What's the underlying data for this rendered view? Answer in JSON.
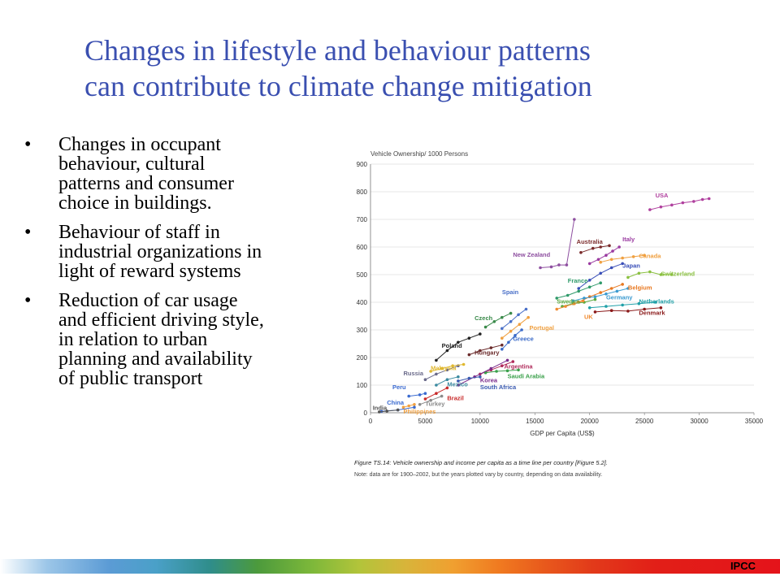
{
  "slide": {
    "title_lines": [
      "Changes in lifestyle and behaviour patterns",
      "can contribute to climate change mitigation"
    ],
    "bullets": [
      {
        "lines": [
          "Changes in occupant",
          "behaviour, cultural",
          "patterns and consumer",
          "choice in buildings."
        ]
      },
      {
        "lines": [
          "Behaviour of staff in",
          "industrial organizations in",
          "light of reward systems"
        ]
      },
      {
        "lines": [
          "Reduction of car usage",
          "and efficient driving style,",
          "in relation to urban",
          "planning and availability",
          "of public transport"
        ]
      }
    ],
    "bullet_char": "•",
    "footer_label": "IPCC"
  },
  "chart_data": {
    "type": "scatter",
    "title": "Vehicle Ownership/ 1000 Persons",
    "xlabel": "GDP per Capita (US$)",
    "ylabel": "",
    "xlim": [
      0,
      35000
    ],
    "ylim": [
      0,
      900
    ],
    "xticks": [
      "0",
      "5000",
      "10000",
      "15000",
      "20000",
      "25000",
      "30000",
      "35000"
    ],
    "yticks": [
      "0",
      "100",
      "200",
      "300",
      "400",
      "500",
      "600",
      "700",
      "800",
      "900"
    ],
    "grid": "horizontal",
    "caption_title": "Figure TS.14: Vehicle ownership and income per capita as a time line per country [Figure 5.2].",
    "caption_note": "Note: data are for 1900–2002, but the years plotted vary by country, depending on data availability.",
    "series": [
      {
        "name": "USA",
        "color": "#b0409e",
        "x": [
          25500,
          26500,
          27500,
          28500,
          29500,
          30300,
          30900
        ],
        "y": [
          735,
          745,
          752,
          760,
          765,
          772,
          775
        ]
      },
      {
        "name": "Italy",
        "color": "#9a3aa0",
        "x": [
          20000,
          20800,
          21500,
          22100,
          22700
        ],
        "y": [
          540,
          555,
          570,
          585,
          600
        ]
      },
      {
        "name": "Canada",
        "color": "#f0a040",
        "x": [
          21000,
          22000,
          23000,
          24000,
          25000
        ],
        "y": [
          545,
          555,
          560,
          565,
          570
        ]
      },
      {
        "name": "Australia",
        "color": "#7a2a2a",
        "x": [
          19200,
          20300,
          21000,
          21800
        ],
        "y": [
          580,
          595,
          600,
          605
        ]
      },
      {
        "name": "New Zealand",
        "color": "#8e4fa0",
        "x": [
          15500,
          16500,
          17200,
          17900,
          18600
        ],
        "y": [
          525,
          528,
          535,
          535,
          700
        ]
      },
      {
        "name": "Japan",
        "color": "#3a4fb8",
        "x": [
          19000,
          20000,
          21000,
          22000,
          23000
        ],
        "y": [
          450,
          480,
          505,
          525,
          540
        ]
      },
      {
        "name": "Switzerland",
        "color": "#8ac040",
        "x": [
          23500,
          24500,
          25500,
          26500,
          27500
        ],
        "y": [
          490,
          505,
          510,
          500,
          500
        ]
      },
      {
        "name": "France",
        "color": "#2f9a6a",
        "x": [
          17000,
          18000,
          19000,
          20000,
          21000
        ],
        "y": [
          415,
          425,
          440,
          455,
          470
        ]
      },
      {
        "name": "Belgium",
        "color": "#e87820",
        "x": [
          19000,
          20000,
          21000,
          22000,
          23000
        ],
        "y": [
          400,
          420,
          435,
          450,
          465
        ]
      },
      {
        "name": "Germany",
        "color": "#3a9ad0",
        "x": [
          18500,
          19500,
          20500,
          21500,
          22500,
          23500
        ],
        "y": [
          405,
          415,
          420,
          430,
          440,
          450
        ]
      },
      {
        "name": "Netherlands",
        "color": "#20a0a8",
        "x": [
          20000,
          21500,
          23000,
          24500,
          26000
        ],
        "y": [
          380,
          385,
          390,
          395,
          400
        ]
      },
      {
        "name": "Sweden",
        "color": "#5aaa40",
        "x": [
          17500,
          18500,
          19500,
          20500
        ],
        "y": [
          385,
          395,
          400,
          410
        ]
      },
      {
        "name": "Denmark",
        "color": "#8b1a1a",
        "x": [
          20500,
          22000,
          23500,
          25000,
          26500
        ],
        "y": [
          365,
          370,
          368,
          375,
          380
        ]
      },
      {
        "name": "UK",
        "color": "#f08a30",
        "x": [
          17000,
          17800,
          18600,
          19400
        ],
        "y": [
          375,
          385,
          395,
          405
        ]
      },
      {
        "name": "Spain",
        "color": "#4a70c8",
        "x": [
          12000,
          12800,
          13500,
          14200
        ],
        "y": [
          305,
          330,
          355,
          375
        ]
      },
      {
        "name": "Czech",
        "color": "#3a8a4a",
        "x": [
          10500,
          11300,
          12000,
          12800
        ],
        "y": [
          310,
          330,
          345,
          360
        ]
      },
      {
        "name": "Portugal",
        "color": "#f0a040",
        "x": [
          12000,
          12800,
          13600,
          14400
        ],
        "y": [
          270,
          295,
          320,
          345
        ]
      },
      {
        "name": "Greece",
        "color": "#3a6ac8",
        "x": [
          12000,
          12600,
          13200,
          13800
        ],
        "y": [
          230,
          255,
          280,
          300
        ]
      },
      {
        "name": "Poland",
        "color": "#222222",
        "x": [
          6000,
          7000,
          8000,
          9000,
          10000
        ],
        "y": [
          190,
          225,
          255,
          270,
          285
        ]
      },
      {
        "name": "Hungary",
        "color": "#6a2a2a",
        "x": [
          9000,
          10000,
          11000,
          12000
        ],
        "y": [
          210,
          225,
          235,
          245
        ]
      },
      {
        "name": "Argentina",
        "color": "#b02a5a",
        "x": [
          10000,
          11000,
          12000,
          13000
        ],
        "y": [
          140,
          155,
          170,
          185
        ]
      },
      {
        "name": "Russia",
        "color": "#6a6a8a",
        "x": [
          5000,
          6000,
          7000,
          8000
        ],
        "y": [
          120,
          140,
          155,
          170
        ]
      },
      {
        "name": "Malaysia",
        "color": "#e0b830",
        "x": [
          5500,
          6500,
          7500,
          8500
        ],
        "y": [
          150,
          160,
          170,
          175
        ]
      },
      {
        "name": "Saudi Arabia",
        "color": "#3aa04a",
        "x": [
          10500,
          11500,
          12500,
          13500
        ],
        "y": [
          145,
          150,
          152,
          155
        ]
      },
      {
        "name": "Korea",
        "color": "#7a2a8a",
        "x": [
          8000,
          9500,
          11000,
          12500
        ],
        "y": [
          100,
          130,
          160,
          190
        ]
      },
      {
        "name": "South Africa",
        "color": "#3a5ab0",
        "x": [
          8000,
          9000,
          10000
        ],
        "y": [
          115,
          125,
          130
        ]
      },
      {
        "name": "Mexico",
        "color": "#3a8aa0",
        "x": [
          6000,
          7000,
          8000
        ],
        "y": [
          100,
          120,
          130
        ]
      },
      {
        "name": "Peru",
        "color": "#3a6ad0",
        "x": [
          3500,
          4500,
          5000
        ],
        "y": [
          60,
          65,
          70
        ]
      },
      {
        "name": "Brazil",
        "color": "#c82a2a",
        "x": [
          5000,
          6000,
          7000
        ],
        "y": [
          50,
          70,
          90
        ]
      },
      {
        "name": "Turkey",
        "color": "#8a8a8a",
        "x": [
          4500,
          5500,
          6500
        ],
        "y": [
          30,
          45,
          60
        ]
      },
      {
        "name": "China",
        "color": "#3a6ad0",
        "x": [
          1000,
          2500,
          4000
        ],
        "y": [
          5,
          10,
          20
        ]
      },
      {
        "name": "India",
        "color": "#555555",
        "x": [
          800,
          1500,
          2500
        ],
        "y": [
          3,
          6,
          10
        ]
      },
      {
        "name": "Philippines",
        "color": "#f0a040",
        "x": [
          3000,
          3500,
          4000
        ],
        "y": [
          20,
          25,
          30
        ]
      }
    ]
  }
}
